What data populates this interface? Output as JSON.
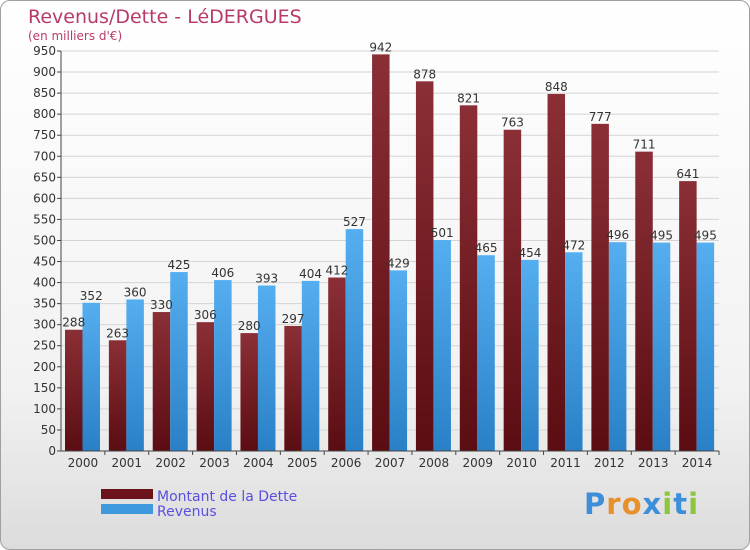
{
  "header": {
    "title": "Revenus/Dette - LéDERGUES",
    "subtitle": "(en milliers d'€)"
  },
  "logo": {
    "text": "Proxiti"
  },
  "colors": {
    "debt": "#7a1f25",
    "revenue": "#3e99dd",
    "title": "#b83a6a",
    "legend_text": "#5a4fe0"
  },
  "chart_data": {
    "type": "bar",
    "categories": [
      "2000",
      "2001",
      "2002",
      "2003",
      "2004",
      "2005",
      "2006",
      "2007",
      "2008",
      "2009",
      "2010",
      "2011",
      "2012",
      "2013",
      "2014"
    ],
    "series": [
      {
        "name": "Montant de la Dette",
        "values": [
          288,
          263,
          330,
          306,
          280,
          297,
          412,
          942,
          878,
          821,
          763,
          848,
          777,
          711,
          641
        ]
      },
      {
        "name": "Revenus",
        "values": [
          352,
          360,
          425,
          406,
          393,
          404,
          527,
          429,
          501,
          465,
          454,
          472,
          496,
          495,
          495
        ]
      }
    ],
    "ylim": [
      0,
      950
    ],
    "yticks": [
      0,
      50,
      100,
      150,
      200,
      250,
      300,
      350,
      400,
      450,
      500,
      550,
      600,
      650,
      700,
      750,
      800,
      850,
      900,
      950
    ],
    "grid": true,
    "legend": "bottom-left"
  }
}
